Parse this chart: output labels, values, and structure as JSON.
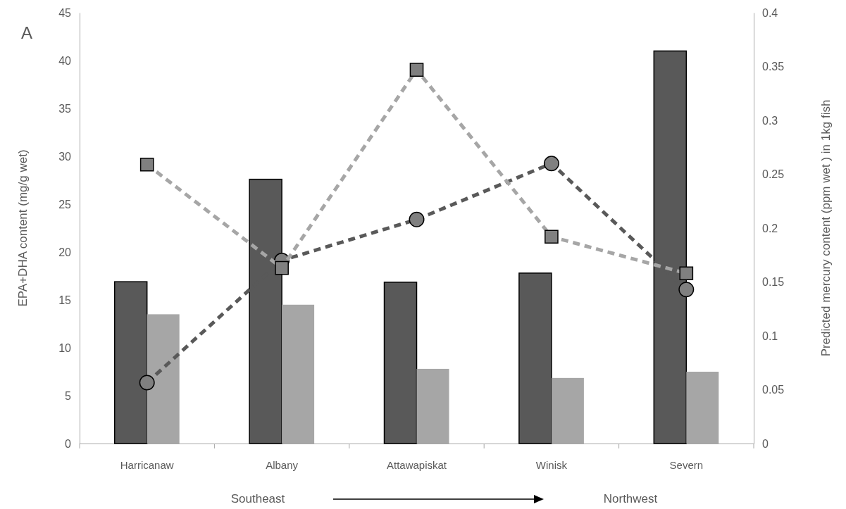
{
  "chart_data": {
    "type": "bar",
    "ylabel": "EPA+DHA content (mg/g wet)",
    "y2label": "Predicted mercury content (ppm wet ) in 1kg fish",
    "categories": [
      "Harricanaw",
      "Albany",
      "Attawapiskat",
      "Winisk",
      "Severn"
    ],
    "series": [
      {
        "color": "#595959",
        "values": [
          16.9,
          27.6,
          16.85,
          17.8,
          41.0
        ]
      },
      {
        "color": "#a6a6a6",
        "values": [
          13.5,
          14.5,
          7.8,
          6.85,
          7.5
        ]
      },
      {
        "type": "line",
        "axis": "y2",
        "color": "#595959",
        "marker": "circle",
        "line_style": "dashed",
        "values": [
          0.0565,
          0.17,
          0.208,
          0.26,
          0.143
        ]
      },
      {
        "type": "line",
        "axis": "y2",
        "color": "#a6a6a6",
        "marker": "square",
        "line_style": "dashed",
        "values": [
          0.259,
          0.163,
          0.347,
          0.192,
          0.158
        ]
      }
    ],
    "ylim": [
      0,
      45
    ],
    "yticks": [
      0,
      5,
      10,
      15,
      20,
      25,
      30,
      35,
      40,
      45
    ],
    "y2lim": [
      0,
      0.4
    ],
    "y2ticks": [
      0,
      0.05,
      0.1,
      0.15,
      0.2,
      0.25,
      0.3,
      0.35,
      0.4
    ],
    "grid": false,
    "annotations": [
      "A",
      "Southeast",
      "Northwest"
    ]
  }
}
